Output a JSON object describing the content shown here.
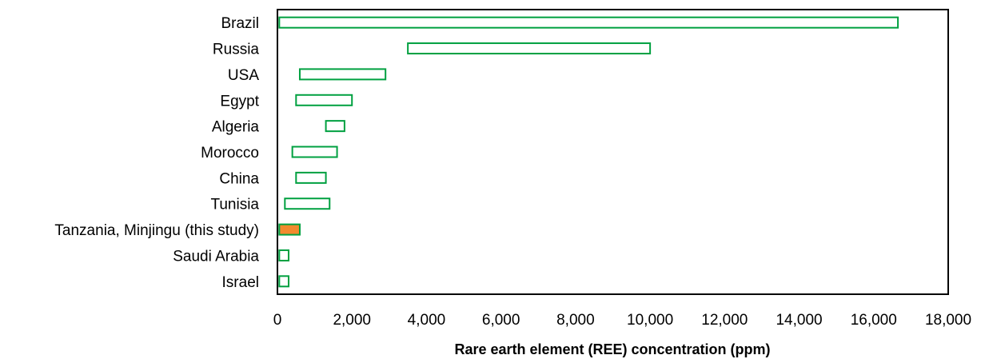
{
  "chart_data": {
    "type": "bar",
    "orientation": "horizontal",
    "subtype": "floating-range",
    "title": "",
    "xlabel": "Rare earth element (REE) concentration (ppm)",
    "ylabel": "",
    "xlim": [
      0,
      18000
    ],
    "xticks": [
      0,
      2000,
      4000,
      6000,
      8000,
      10000,
      12000,
      14000,
      16000,
      18000
    ],
    "xtick_labels": [
      "0",
      "2,000",
      "4,000",
      "6,000",
      "8,000",
      "10,000",
      "12,000",
      "14,000",
      "16,000",
      "18,000"
    ],
    "grid": false,
    "legend": "none",
    "categories": [
      "Brazil",
      "Russia",
      "USA",
      "Egypt",
      "Algeria",
      "Morocco",
      "China",
      "Tunisia",
      "Tanzania, Minjingu (this study)",
      "Saudi Arabia",
      "Israel"
    ],
    "ranges": [
      [
        50,
        16650
      ],
      [
        3500,
        10000
      ],
      [
        600,
        2900
      ],
      [
        500,
        2000
      ],
      [
        1300,
        1800
      ],
      [
        400,
        1600
      ],
      [
        500,
        1300
      ],
      [
        200,
        1400
      ],
      [
        50,
        600
      ],
      [
        50,
        300
      ],
      [
        50,
        300
      ]
    ],
    "colors": [
      "#00a040",
      "#00a040",
      "#00a040",
      "#00a040",
      "#00a040",
      "#00a040",
      "#00a040",
      "#00a040",
      "#f28a2e",
      "#00a040",
      "#00a040"
    ],
    "highlight": {
      "category": "Tanzania, Minjingu (this study)",
      "fill": "#f28a2e",
      "stroke": "#00a040"
    },
    "default_style": {
      "fill": "#ffffff",
      "stroke": "#00a040"
    }
  }
}
